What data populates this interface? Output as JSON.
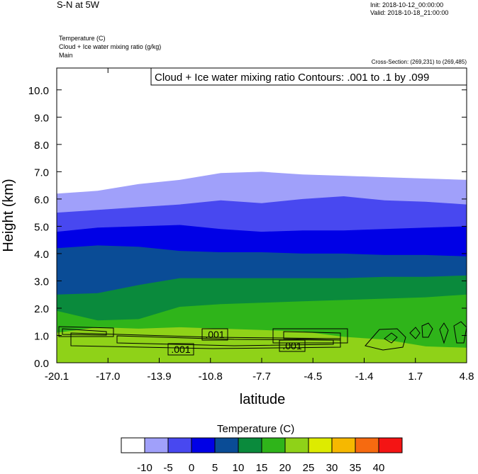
{
  "header": {
    "title": "S-N at 5W",
    "init": "Init: 2018-10-12_00:00:00",
    "valid": "Valid: 2018-10-18_21:00:00"
  },
  "fields": [
    "Temperature   (C)",
    "Cloud + Ice water mixing ratio   (g/kg)",
    "Main"
  ],
  "cross_section": "Cross-Section: (269,231) to (269,485)",
  "contour_info": "Cloud + Ice water mixing ratio Contours: .001 to .1 by .099",
  "colorbar": {
    "title": "Temperature  (C)",
    "colors": [
      "#ffffff",
      "#a0a0fa",
      "#4848f0",
      "#0000e6",
      "#0a4c96",
      "#0a8a3c",
      "#2fb41a",
      "#8fd218",
      "#ddeb00",
      "#f6b800",
      "#f66a10",
      "#f41414"
    ],
    "labels": [
      "-10",
      "-5",
      "0",
      "5",
      "10",
      "15",
      "20",
      "25",
      "30",
      "35",
      "40"
    ]
  },
  "chart_data": {
    "type": "heatmap",
    "xlabel": "latitude",
    "ylabel": "Height (km)",
    "x_ticks": [
      "-20.1",
      "-17.0",
      "-13.9",
      "-10.8",
      "-7.7",
      "-4.5",
      "-1.4",
      "1.7",
      "4.8"
    ],
    "y_ticks": [
      "0.0",
      "1.0",
      "2.0",
      "3.0",
      "4.0",
      "5.0",
      "6.0",
      "7.0",
      "8.0",
      "9.0",
      "10.0"
    ],
    "xlim": [
      -20.1,
      4.8
    ],
    "ylim": [
      0,
      10.8
    ],
    "contour_labels": [
      ".001",
      ".001",
      ".001"
    ],
    "isotherms_km": [
      {
        "level": "-10",
        "heights": [
          6.2,
          6.3,
          6.55,
          6.7,
          6.95,
          7.0,
          6.9,
          6.85,
          6.8,
          6.75,
          6.7
        ]
      },
      {
        "level": "-5",
        "heights": [
          5.5,
          5.6,
          5.7,
          5.8,
          5.95,
          5.85,
          6.0,
          6.1,
          5.95,
          5.9,
          5.8
        ]
      },
      {
        "level": "0",
        "heights": [
          4.8,
          4.95,
          5.0,
          5.05,
          4.9,
          4.8,
          4.85,
          4.85,
          4.9,
          4.95,
          5.0
        ]
      },
      {
        "level": "5",
        "heights": [
          4.2,
          4.3,
          4.25,
          4.1,
          4.05,
          4.05,
          4.0,
          4.0,
          3.95,
          3.95,
          3.9
        ]
      },
      {
        "level": "10",
        "heights": [
          2.5,
          2.55,
          2.85,
          3.1,
          3.1,
          3.1,
          3.1,
          3.1,
          3.15,
          3.15,
          3.2
        ]
      },
      {
        "level": "15",
        "heights": [
          1.9,
          1.55,
          1.6,
          2.05,
          2.15,
          2.2,
          2.25,
          2.3,
          2.35,
          2.4,
          2.5
        ]
      },
      {
        "level": "20",
        "heights": [
          1.1,
          1.3,
          1.25,
          1.3,
          1.25,
          1.2,
          1.15,
          0.95,
          0.85,
          0.6,
          0.55
        ]
      },
      {
        "level": "25",
        "heights": [
          0.0,
          0.0,
          0.0,
          0.0,
          0.0,
          0.0,
          0.0,
          0.0,
          0.35,
          0.4,
          0.5
        ]
      }
    ]
  }
}
